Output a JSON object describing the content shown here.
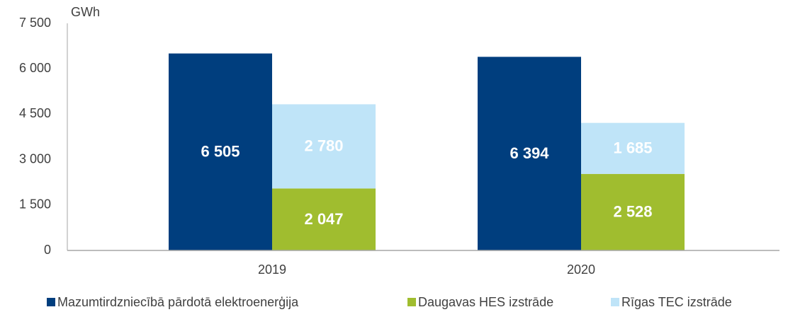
{
  "chart_data": {
    "type": "bar",
    "ylabel": "GWh",
    "categories": [
      "2019",
      "2020"
    ],
    "series": [
      {
        "name": "Mazumtirdzniecībā pārdotā elektroenerģija",
        "color": "#003e7e",
        "values": [
          6505,
          6394
        ],
        "value_labels": [
          "6 505",
          "6 394"
        ]
      },
      {
        "name": "Daugavas HES izstrāde",
        "color": "#a0bd2f",
        "values": [
          2047,
          2528
        ],
        "value_labels": [
          "2 047",
          "2 528"
        ]
      },
      {
        "name": "Rīgas TEC izstrāde",
        "color": "#bfe4f8",
        "values": [
          2780,
          1685
        ],
        "value_labels": [
          "2 780",
          "1 685"
        ]
      }
    ],
    "ylim": [
      0,
      7500
    ],
    "yticks": [
      {
        "value": 0,
        "label": "0"
      },
      {
        "value": 1500,
        "label": "1 500"
      },
      {
        "value": 3000,
        "label": "3 000"
      },
      {
        "value": 4500,
        "label": "4 500"
      },
      {
        "value": 6000,
        "label": "6 000"
      },
      {
        "value": 7500,
        "label": "7 500"
      }
    ],
    "legend": "bottom"
  }
}
